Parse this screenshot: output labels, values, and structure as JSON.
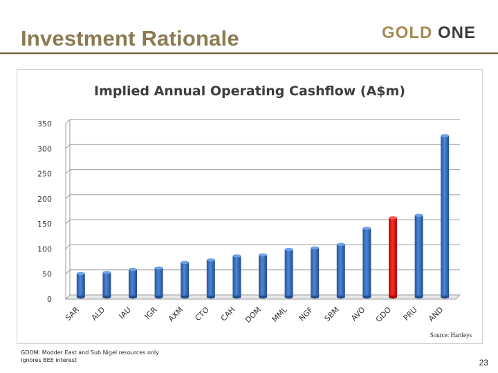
{
  "header": {
    "title": "Investment Rationale",
    "logo_left": "GOLD",
    "logo_right": "ONE"
  },
  "chart_data": {
    "type": "bar",
    "title": "Implied Annual Operating Cashflow (A$m)",
    "xlabel": "",
    "ylabel": "",
    "ylim": [
      0,
      350
    ],
    "yticks": [
      0,
      50,
      100,
      150,
      200,
      250,
      300,
      350
    ],
    "grid": true,
    "categories": [
      "SAR",
      "ALD",
      "IAU",
      "IGR",
      "AXM",
      "CTO",
      "CAH",
      "DOM",
      "MML",
      "NGF",
      "SBM",
      "AVO",
      "GDO",
      "PRU",
      "AND"
    ],
    "values": [
      47,
      49,
      55,
      58,
      69,
      74,
      82,
      84,
      95,
      98,
      105,
      137,
      158,
      163,
      322
    ],
    "highlight": "GDO",
    "colors": {
      "default": "#3a6fc2",
      "highlight": "#e8140f"
    }
  },
  "source": "Source: Hartleys",
  "footnote": {
    "line1": "GDOM: Modder East and Sub Nigel resources only",
    "line2": "Ignores BEE interest"
  },
  "page_number": "23"
}
